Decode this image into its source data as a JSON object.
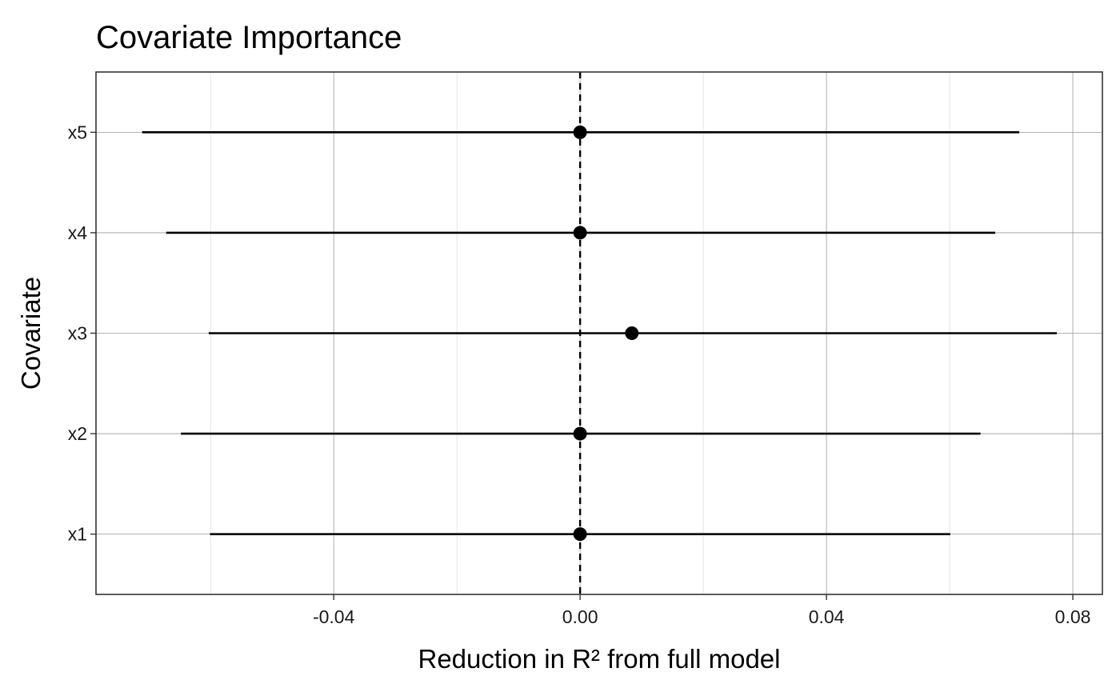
{
  "chart_data": {
    "type": "scatter",
    "title": "Covariate Importance",
    "xlabel": "Reduction in R² from full model",
    "ylabel": "Covariate",
    "categories": [
      "x1",
      "x2",
      "x3",
      "x4",
      "x5"
    ],
    "series": [
      {
        "points": [
          {
            "category": "x1",
            "estimate": 0.0,
            "lower": -0.0601,
            "upper": 0.0601
          },
          {
            "category": "x2",
            "estimate": 0.0,
            "lower": -0.0648,
            "upper": 0.065
          },
          {
            "category": "x3",
            "estimate": 0.0084,
            "lower": -0.0603,
            "upper": 0.0774
          },
          {
            "category": "x4",
            "estimate": 0.0,
            "lower": -0.0672,
            "upper": 0.0674
          },
          {
            "category": "x5",
            "estimate": 0.0,
            "lower": -0.0711,
            "upper": 0.0713
          }
        ]
      }
    ],
    "reference_line": {
      "x": 0,
      "style": "dashed"
    },
    "xlim": [
      -0.0786,
      0.0848
    ],
    "x_ticks": [
      -0.04,
      0.0,
      0.04,
      0.08
    ],
    "x_tick_labels": [
      "-0.04",
      "0.00",
      "0.04",
      "0.08"
    ],
    "x_minor_ticks": [
      -0.06,
      -0.02,
      0.02,
      0.06
    ],
    "grid": true,
    "theme": "bw"
  }
}
